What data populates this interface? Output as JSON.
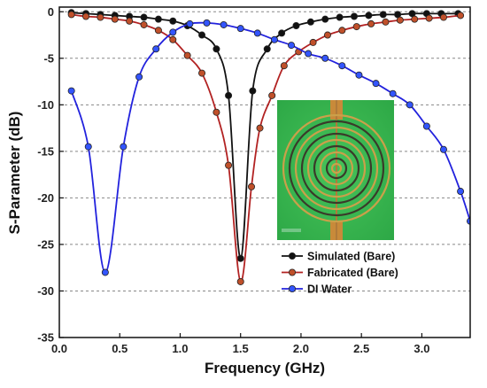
{
  "chart_data": {
    "type": "line",
    "xlabel": "Frequency (GHz)",
    "ylabel": "S-Parameter (dB)",
    "xlim": [
      0.0,
      3.4
    ],
    "ylim": [
      -35,
      0.5
    ],
    "xticks": [
      "0.0",
      "0.5",
      "1.0",
      "1.5",
      "2.0",
      "2.5",
      "3.0"
    ],
    "xtick_values": [
      0.0,
      0.5,
      1.0,
      1.5,
      2.0,
      2.5,
      3.0
    ],
    "yticks": [
      "0",
      "-5",
      "-10",
      "-15",
      "-20",
      "-25",
      "-30",
      "-35"
    ],
    "ytick_values": [
      0,
      -5,
      -10,
      -15,
      -20,
      -25,
      -30,
      -35
    ],
    "grid": "horizontal dashed",
    "legend_position": "bottom-right",
    "inset": "photo of fabricated spiral resonator sensor",
    "series": [
      {
        "name": "Simulated (Bare)",
        "color": "#111111",
        "marker_fill": "#111111",
        "points": [
          [
            0.1,
            -0.1
          ],
          [
            0.22,
            -0.2
          ],
          [
            0.34,
            -0.3
          ],
          [
            0.46,
            -0.4
          ],
          [
            0.58,
            -0.5
          ],
          [
            0.7,
            -0.6
          ],
          [
            0.82,
            -0.8
          ],
          [
            0.94,
            -1.0
          ],
          [
            1.06,
            -1.5
          ],
          [
            1.18,
            -2.5
          ],
          [
            1.3,
            -4.0
          ],
          [
            1.4,
            -9.0
          ],
          [
            1.5,
            -26.5
          ],
          [
            1.6,
            -8.5
          ],
          [
            1.72,
            -4.0
          ],
          [
            1.84,
            -2.3
          ],
          [
            1.96,
            -1.5
          ],
          [
            2.08,
            -1.1
          ],
          [
            2.2,
            -0.8
          ],
          [
            2.32,
            -0.6
          ],
          [
            2.44,
            -0.5
          ],
          [
            2.56,
            -0.4
          ],
          [
            2.68,
            -0.3
          ],
          [
            2.8,
            -0.3
          ],
          [
            2.92,
            -0.2
          ],
          [
            3.04,
            -0.2
          ],
          [
            3.16,
            -0.2
          ],
          [
            3.3,
            -0.2
          ]
        ]
      },
      {
        "name": "Fabricated (Bare)",
        "color": "#b22222",
        "marker_fill": "#c0502a",
        "points": [
          [
            0.1,
            -0.3
          ],
          [
            0.22,
            -0.5
          ],
          [
            0.34,
            -0.6
          ],
          [
            0.46,
            -0.8
          ],
          [
            0.58,
            -1.0
          ],
          [
            0.7,
            -1.4
          ],
          [
            0.82,
            -2.0
          ],
          [
            0.94,
            -3.0
          ],
          [
            1.06,
            -4.7
          ],
          [
            1.18,
            -6.6
          ],
          [
            1.3,
            -10.8
          ],
          [
            1.4,
            -16.5
          ],
          [
            1.5,
            -29.0
          ],
          [
            1.59,
            -18.8
          ],
          [
            1.66,
            -12.5
          ],
          [
            1.76,
            -9.0
          ],
          [
            1.86,
            -5.8
          ],
          [
            1.98,
            -4.3
          ],
          [
            2.1,
            -3.3
          ],
          [
            2.22,
            -2.5
          ],
          [
            2.34,
            -2.0
          ],
          [
            2.46,
            -1.6
          ],
          [
            2.58,
            -1.3
          ],
          [
            2.7,
            -1.1
          ],
          [
            2.82,
            -0.9
          ],
          [
            2.94,
            -0.8
          ],
          [
            3.06,
            -0.7
          ],
          [
            3.18,
            -0.6
          ],
          [
            3.32,
            -0.4
          ]
        ]
      },
      {
        "name": "DI Water",
        "color": "#2222dd",
        "marker_fill": "#3355ff",
        "points": [
          [
            0.1,
            -8.5
          ],
          [
            0.24,
            -14.5
          ],
          [
            0.38,
            -28.0
          ],
          [
            0.53,
            -14.5
          ],
          [
            0.66,
            -7.0
          ],
          [
            0.8,
            -4.0
          ],
          [
            0.94,
            -2.2
          ],
          [
            1.08,
            -1.3
          ],
          [
            1.22,
            -1.2
          ],
          [
            1.36,
            -1.4
          ],
          [
            1.5,
            -1.8
          ],
          [
            1.64,
            -2.3
          ],
          [
            1.78,
            -3.0
          ],
          [
            1.92,
            -3.6
          ],
          [
            2.06,
            -4.5
          ],
          [
            2.2,
            -5.0
          ],
          [
            2.34,
            -5.8
          ],
          [
            2.48,
            -6.8
          ],
          [
            2.62,
            -7.7
          ],
          [
            2.76,
            -8.8
          ],
          [
            2.9,
            -10.0
          ],
          [
            3.04,
            -12.3
          ],
          [
            3.18,
            -14.8
          ],
          [
            3.32,
            -19.3
          ],
          [
            3.4,
            -22.5
          ]
        ]
      }
    ]
  }
}
